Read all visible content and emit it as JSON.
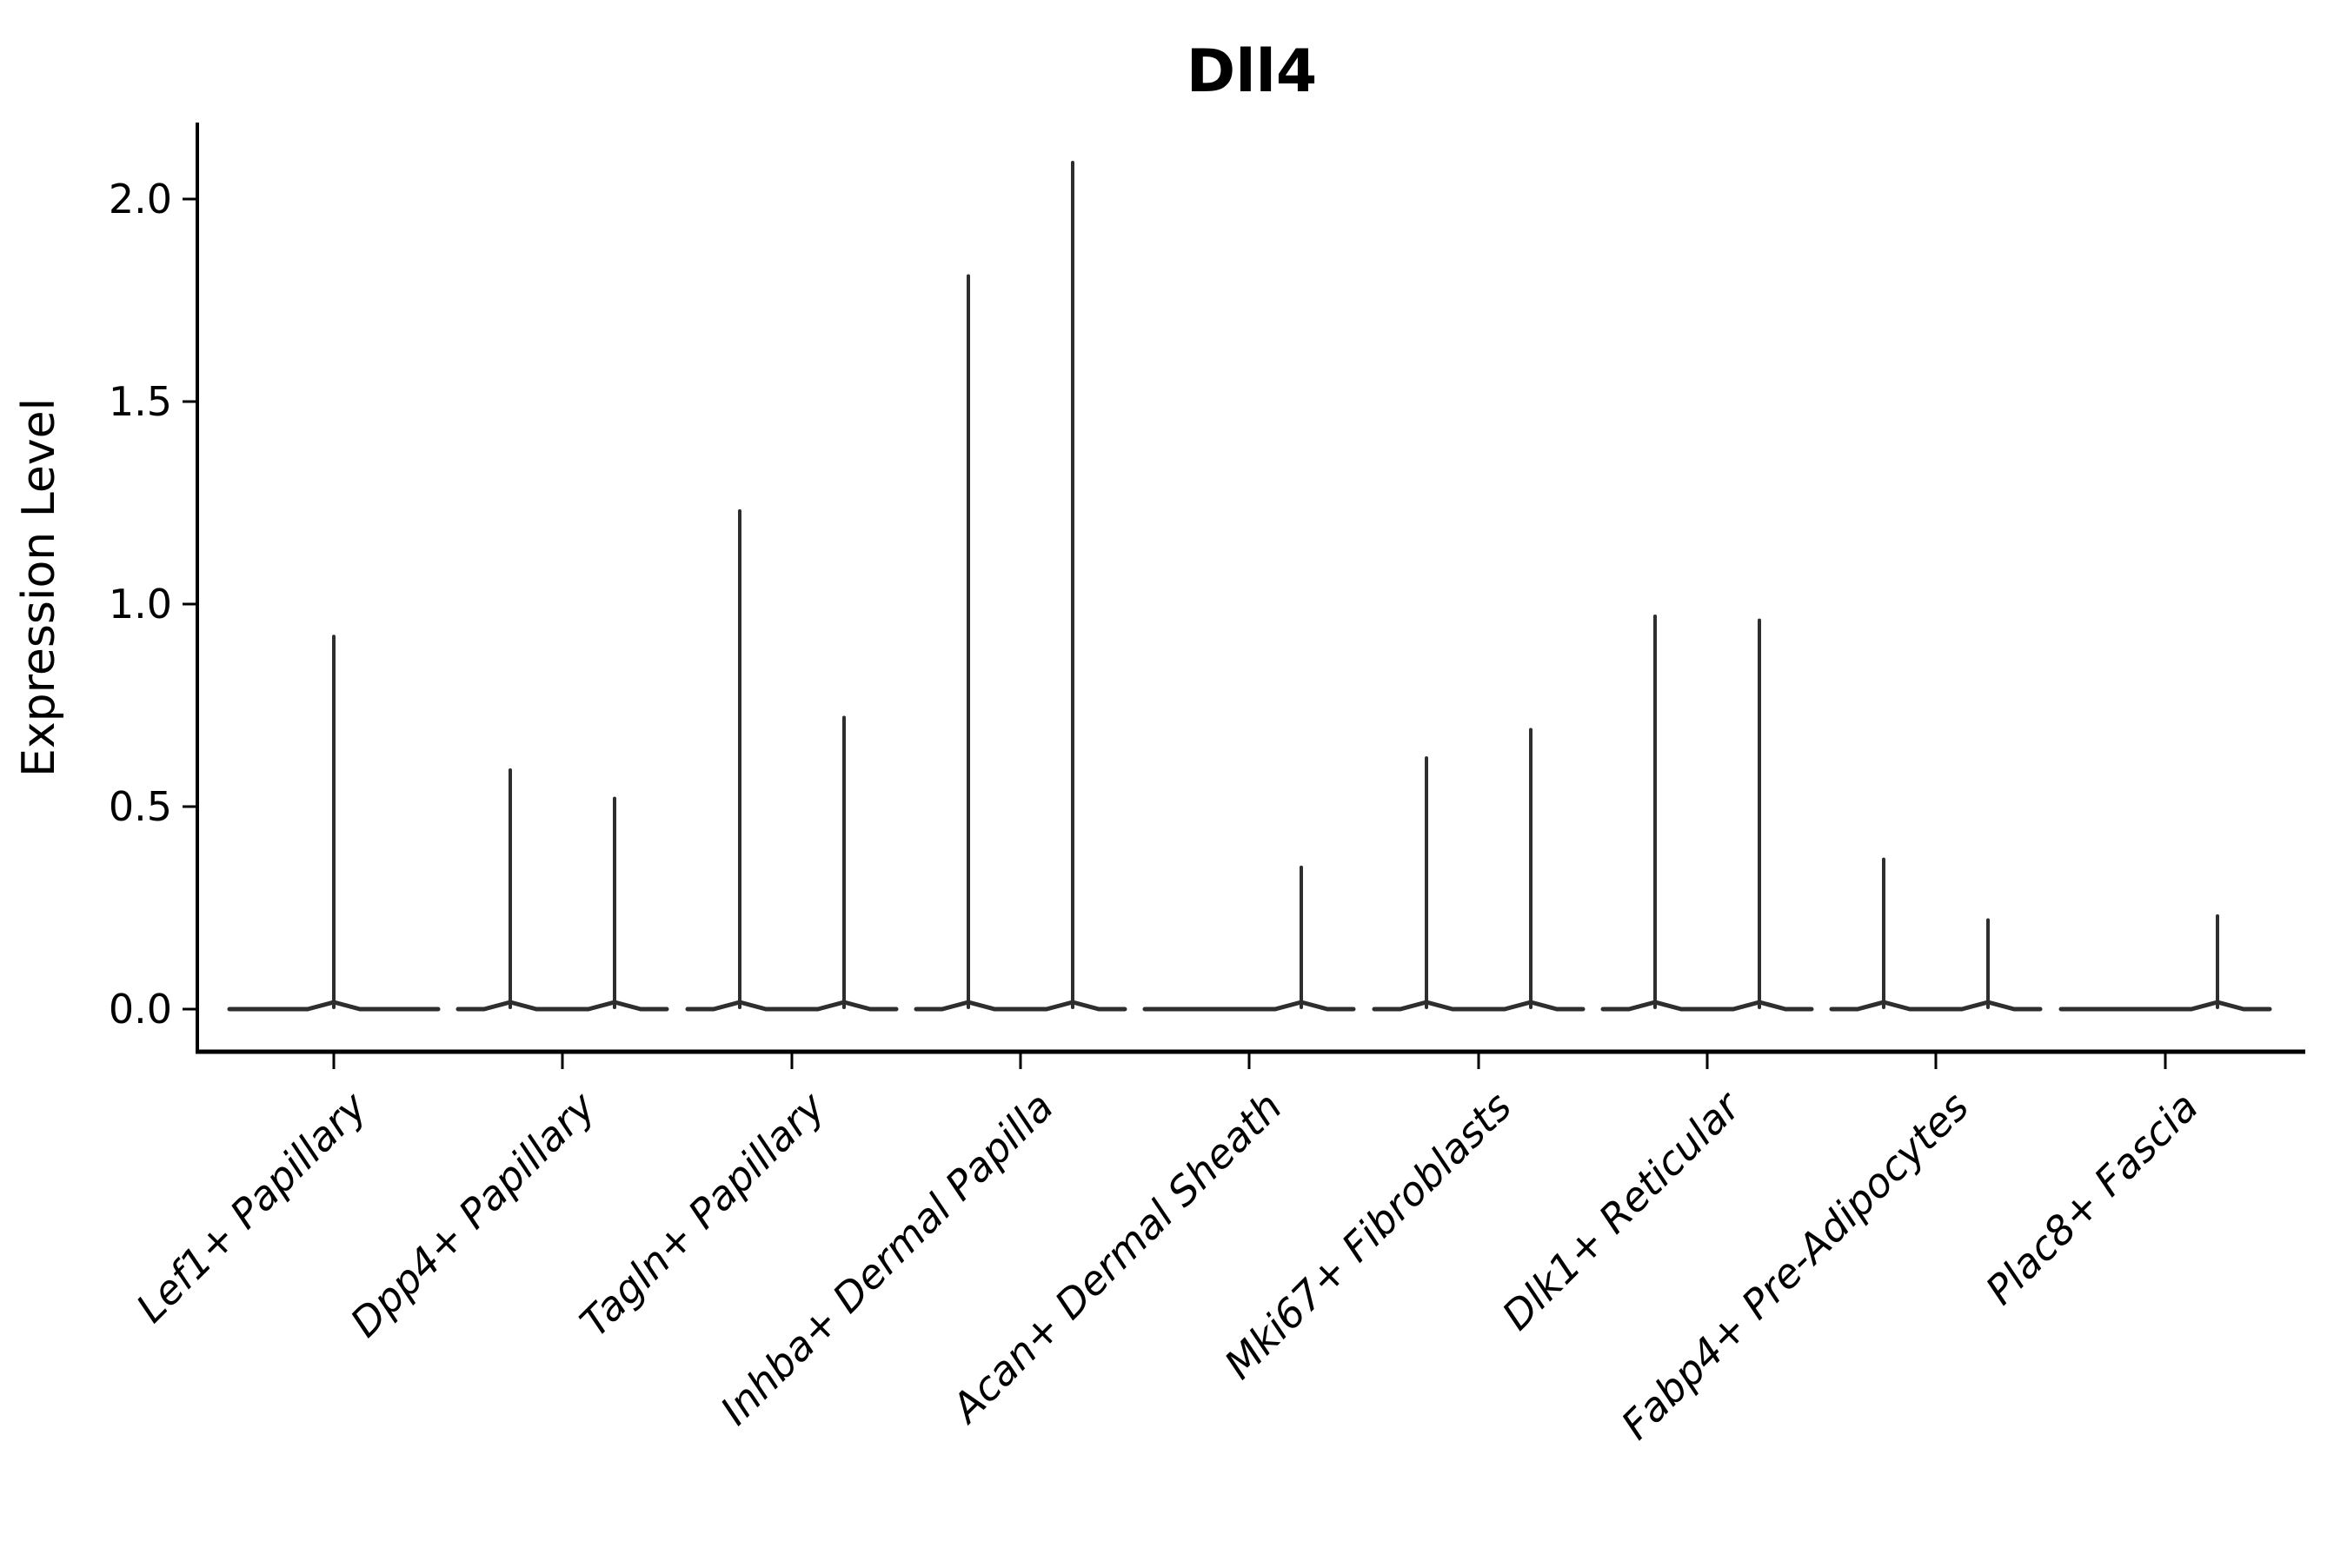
{
  "title": "Dll4",
  "y_axis": {
    "label": "Expression Level",
    "tick_labels": [
      "0.0",
      "0.5",
      "1.0",
      "1.5",
      "2.0"
    ],
    "tick_values": [
      0.0,
      0.5,
      1.0,
      1.5,
      2.0
    ]
  },
  "chart_data": {
    "type": "violin",
    "title": "Dll4",
    "xlabel": "",
    "ylabel": "Expression Level",
    "ylim": [
      -0.1,
      2.19
    ],
    "yticks": [
      0.0,
      0.5,
      1.0,
      1.5,
      2.0
    ],
    "ytick_labels": [
      "0.0",
      "0.5",
      "1.0",
      "1.5",
      "2.0"
    ],
    "x_tick_rotation": 45,
    "grid": false,
    "legend": false,
    "background": "#ffffff",
    "axis_color": "#000000",
    "violin_color": "#2e2e2e",
    "categories": [
      "Lef1+ Papillary",
      "Dpp4+ Papillary",
      "Tagln+ Papillary",
      "Inhba+ Dermal Papilla",
      "Acan+ Dermal Sheath",
      "Mki67+ Fibroblasts",
      "Dlk1+ Reticular",
      "Fabp4+ Pre-Adipocytes",
      "Plac8+ Fascia"
    ],
    "description": "Violin plot of Dll4 expression; nearly all density lies at 0 so each violin renders as a flat base line at 0 with a hairline spike up to the maximum expression value.",
    "groups": [
      {
        "label": "Lef1+ Papillary",
        "violins": [
          {
            "position": "full",
            "peak": 0.92
          }
        ]
      },
      {
        "label": "Dpp4+ Papillary",
        "violins": [
          {
            "position": "left",
            "peak": 0.59
          },
          {
            "position": "right",
            "peak": 0.52
          }
        ]
      },
      {
        "label": "Tagln+ Papillary",
        "violins": [
          {
            "position": "left",
            "peak": 1.23
          },
          {
            "position": "right",
            "peak": 0.72
          }
        ]
      },
      {
        "label": "Inhba+ Dermal Papilla",
        "violins": [
          {
            "position": "left",
            "peak": 1.81
          },
          {
            "position": "right",
            "peak": 2.09
          }
        ]
      },
      {
        "label": "Acan+ Dermal Sheath",
        "violins": [
          {
            "position": "left",
            "peak": 0
          },
          {
            "position": "right",
            "peak": 0.35
          }
        ]
      },
      {
        "label": "Mki67+ Fibroblasts",
        "violins": [
          {
            "position": "left",
            "peak": 0.62
          },
          {
            "position": "right",
            "peak": 0.69
          }
        ]
      },
      {
        "label": "Dlk1+ Reticular",
        "violins": [
          {
            "position": "left",
            "peak": 0.97
          },
          {
            "position": "right",
            "peak": 0.96
          }
        ]
      },
      {
        "label": "Fabp4+ Pre-Adipocytes",
        "violins": [
          {
            "position": "left",
            "peak": 0.37
          },
          {
            "position": "right",
            "peak": 0.22
          }
        ]
      },
      {
        "label": "Plac8+ Fascia",
        "violins": [
          {
            "position": "left",
            "peak": 0
          },
          {
            "position": "right",
            "peak": 0.23
          }
        ]
      }
    ]
  }
}
